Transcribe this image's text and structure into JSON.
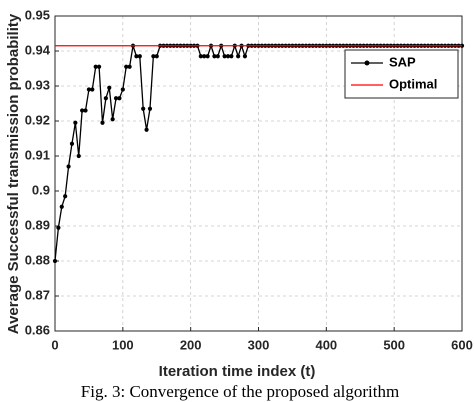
{
  "chart_data": {
    "type": "line",
    "xlabel": "Iteration time index (t)",
    "ylabel": "Average Successful transmission probability",
    "caption": "Fig. 3: Convergence of the proposed algorithm",
    "x": [
      0,
      5,
      10,
      15,
      20,
      25,
      30,
      35,
      40,
      45,
      50,
      55,
      60,
      65,
      70,
      75,
      80,
      85,
      90,
      95,
      100,
      105,
      110,
      115,
      120,
      125,
      130,
      135,
      140,
      145,
      150,
      155,
      160,
      165,
      170,
      175,
      180,
      185,
      190,
      195,
      200,
      205,
      210,
      215,
      220,
      225,
      230,
      235,
      240,
      245,
      250,
      255,
      260,
      265,
      270,
      275,
      280,
      285,
      290,
      295,
      300,
      305,
      310,
      315,
      320,
      325,
      330,
      335,
      340,
      345,
      350,
      355,
      360,
      365,
      370,
      375,
      380,
      385,
      390,
      395,
      400,
      405,
      410,
      415,
      420,
      425,
      430,
      435,
      440,
      445,
      450,
      455,
      460,
      465,
      470,
      475,
      480,
      485,
      490,
      495,
      500,
      505,
      510,
      515,
      520,
      525,
      530,
      535,
      540,
      545,
      550,
      555,
      560,
      565,
      570,
      575,
      580,
      585,
      590,
      595,
      600
    ],
    "series": [
      {
        "name": "SAP",
        "color": "#000000",
        "marker": true,
        "values": [
          0.88,
          0.8895,
          0.8955,
          0.8985,
          0.907,
          0.9135,
          0.9195,
          0.91,
          0.923,
          0.923,
          0.929,
          0.929,
          0.9355,
          0.9355,
          0.9195,
          0.9265,
          0.9295,
          0.9205,
          0.9265,
          0.9265,
          0.929,
          0.9355,
          0.9355,
          0.9415,
          0.9385,
          0.9385,
          0.9235,
          0.9175,
          0.9235,
          0.9385,
          0.9385,
          0.9415,
          0.9415,
          0.9415,
          0.9415,
          0.9415,
          0.9415,
          0.9415,
          0.9415,
          0.9415,
          0.9415,
          0.9415,
          0.9415,
          0.9385,
          0.9385,
          0.9385,
          0.9415,
          0.9385,
          0.9385,
          0.9415,
          0.9385,
          0.9385,
          0.9385,
          0.9415,
          0.9385,
          0.9415,
          0.9385,
          0.9415,
          0.9415,
          0.9415,
          0.9415,
          0.9415,
          0.9415,
          0.9415,
          0.9415,
          0.9415,
          0.9415,
          0.9415,
          0.9415,
          0.9415,
          0.9415,
          0.9415,
          0.9415,
          0.9415,
          0.9415,
          0.9415,
          0.9415,
          0.9415,
          0.9415,
          0.9415,
          0.9415,
          0.9415,
          0.9415,
          0.9415,
          0.9415,
          0.9415,
          0.9415,
          0.9415,
          0.9415,
          0.9415,
          0.9415,
          0.9415,
          0.9415,
          0.9415,
          0.9415,
          0.9415,
          0.9415,
          0.9415,
          0.9415,
          0.9415,
          0.9415,
          0.9415,
          0.9415,
          0.9415,
          0.9415,
          0.9415,
          0.9415,
          0.9415,
          0.9415,
          0.9415,
          0.9415,
          0.9415,
          0.9415,
          0.9415,
          0.9415,
          0.9415,
          0.9415,
          0.9415,
          0.9415,
          0.9415,
          0.9415
        ]
      },
      {
        "name": "Optimal",
        "color": "#ff0000",
        "marker": false,
        "x": [
          0,
          600
        ],
        "values": [
          0.9415,
          0.9415
        ]
      }
    ],
    "xlim": [
      0,
      600
    ],
    "xticks": [
      0,
      100,
      200,
      300,
      400,
      500,
      600
    ],
    "ylim": [
      0.86,
      0.95
    ],
    "yticks": [
      0.86,
      0.87,
      0.88,
      0.89,
      0.9,
      0.91,
      0.92,
      0.93,
      0.94,
      0.95
    ],
    "grid": true,
    "legend": "upper right"
  }
}
